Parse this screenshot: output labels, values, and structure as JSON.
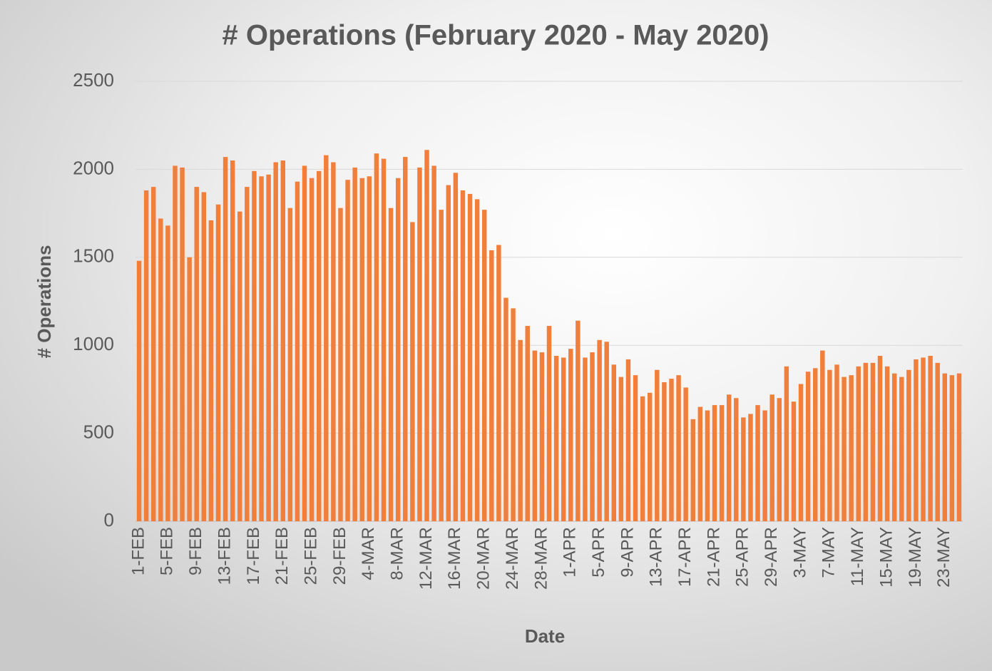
{
  "chart_data": {
    "type": "bar",
    "title": "# Operations (February 2020 - May 2020)",
    "x_label": "Date",
    "y_label": "# Operations",
    "categories": [
      "1-FEB",
      null,
      null,
      null,
      "5-FEB",
      null,
      null,
      null,
      "9-FEB",
      null,
      null,
      null,
      "13-FEB",
      null,
      null,
      null,
      "17-FEB",
      null,
      null,
      null,
      "21-FEB",
      null,
      null,
      null,
      "25-FEB",
      null,
      null,
      null,
      "29-FEB",
      null,
      null,
      null,
      "4-MAR",
      null,
      null,
      null,
      "8-MAR",
      null,
      null,
      null,
      "12-MAR",
      null,
      null,
      null,
      "16-MAR",
      null,
      null,
      null,
      "20-MAR",
      null,
      null,
      null,
      "24-MAR",
      null,
      null,
      null,
      "28-MAR",
      null,
      null,
      null,
      "1-APR",
      null,
      null,
      null,
      "5-APR",
      null,
      null,
      null,
      "9-APR",
      null,
      null,
      null,
      "13-APR",
      null,
      null,
      null,
      "17-APR",
      null,
      null,
      null,
      "21-APR",
      null,
      null,
      null,
      "25-APR",
      null,
      null,
      null,
      "29-APR",
      null,
      null,
      null,
      "3-MAY",
      null,
      null,
      null,
      "7-MAY",
      null,
      null,
      null,
      "11-MAY",
      null,
      null,
      null,
      "15-MAY",
      null,
      null,
      null,
      "19-MAY",
      null,
      null,
      null,
      "23-MAY",
      null,
      null
    ],
    "values": [
      1480,
      1880,
      1900,
      1720,
      1680,
      2020,
      2010,
      1500,
      1900,
      1870,
      1710,
      1800,
      2070,
      2050,
      1760,
      1900,
      1990,
      1960,
      1970,
      2040,
      2050,
      1780,
      1930,
      2020,
      1950,
      1990,
      2080,
      2040,
      1780,
      1940,
      2010,
      1950,
      1960,
      2090,
      2060,
      1780,
      1950,
      2070,
      1700,
      2010,
      2110,
      2020,
      1770,
      1910,
      1980,
      1880,
      1860,
      1830,
      1770,
      1540,
      1570,
      1270,
      1210,
      1030,
      1110,
      970,
      960,
      1110,
      940,
      930,
      980,
      1140,
      930,
      960,
      1030,
      1020,
      890,
      820,
      920,
      830,
      710,
      730,
      860,
      790,
      810,
      830,
      760,
      580,
      650,
      630,
      660,
      660,
      720,
      700,
      590,
      610,
      660,
      630,
      720,
      700,
      880,
      680,
      780,
      850,
      870,
      970,
      860,
      890,
      820,
      830,
      880,
      900,
      900,
      940,
      880,
      840,
      820,
      860,
      920,
      930,
      940,
      900,
      840,
      830,
      840
    ],
    "color": "#f07f3c",
    "ylim": [
      0,
      2500
    ],
    "yticks": [
      0,
      500,
      1000,
      1500,
      2000,
      2500
    ],
    "grid": true
  }
}
